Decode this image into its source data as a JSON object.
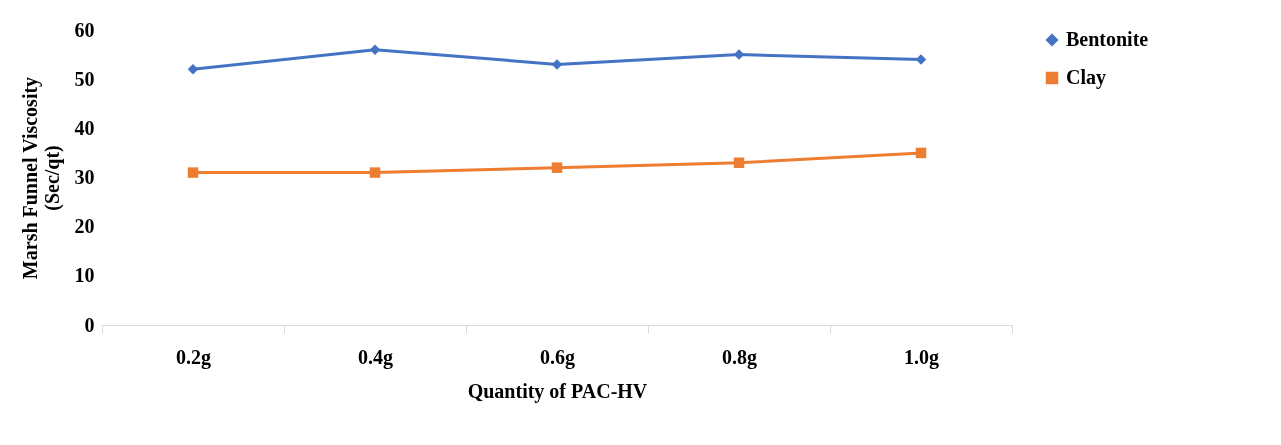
{
  "chart_data": {
    "type": "line",
    "xlabel": "Quantity of PAC-HV",
    "ylabel": "Marsh Funnel Viscosity\n(Sec/qt)",
    "categories": [
      "0.2g",
      "0.4g",
      "0.6g",
      "0.8g",
      "1.0g"
    ],
    "series": [
      {
        "name": "Bentonite",
        "color": "#4472c4",
        "marker": "diamond",
        "values": [
          52,
          56,
          53,
          55,
          54
        ]
      },
      {
        "name": "Clay",
        "color": "#ed7d31",
        "marker": "square",
        "values": [
          31,
          31,
          32,
          33,
          35
        ]
      }
    ],
    "ylim": [
      0,
      60
    ],
    "yticks": [
      0,
      10,
      20,
      30,
      40,
      50,
      60
    ],
    "grid": false,
    "legend": "right",
    "line_style": "solid"
  }
}
